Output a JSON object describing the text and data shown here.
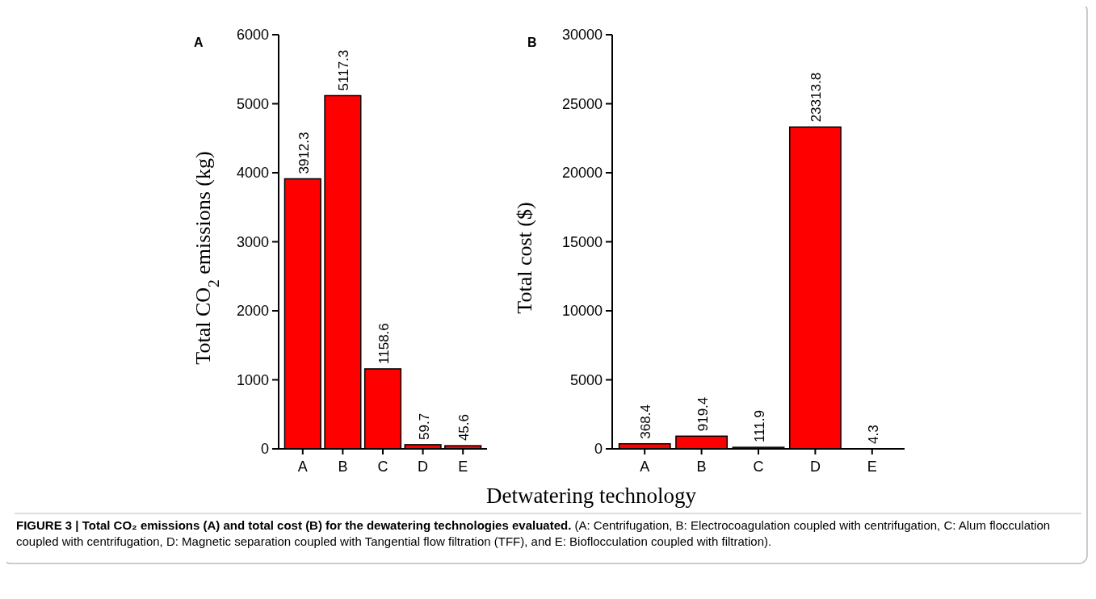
{
  "chart_data": [
    {
      "type": "bar",
      "title": "A",
      "categories": [
        "A",
        "B",
        "C",
        "D",
        "E"
      ],
      "values": [
        3912.3,
        5117.3,
        1158.6,
        59.7,
        45.6
      ],
      "color": "#ff0000",
      "ylim": [
        0,
        6000
      ],
      "yticks": [
        0,
        1000,
        2000,
        3000,
        4000,
        5000,
        6000
      ],
      "ylabel": "Total CO$_{2}$ emissions (kg)",
      "xlabel": "Detwatering technology",
      "data_labels": true,
      "annotations": [
        "FIGURE 3 | Total CO₂ emissions (A) and total cost (B) for the dewatering technologies evaluated.",
        "(A: Centrifugation, B: Electrocoagulation coupled with centrifugation, C: Alum flocculation coupled with centrifugation, D: Magnetic separation coupled with Tangential flow filtration (TFF), and E: Bioflocculation coupled with filtration)."
      ]
    },
    {
      "type": "bar",
      "title": "B",
      "categories": [
        "A",
        "B",
        "C",
        "D",
        "E"
      ],
      "values": [
        368.4,
        919.4,
        111.9,
        23313.8,
        4.3
      ],
      "color": "#ff0000",
      "ylim": [
        0,
        30000
      ],
      "yticks": [
        0,
        5000,
        10000,
        15000,
        20000,
        25000,
        30000
      ],
      "ylabel": "Total cost ($)",
      "data_labels": true
    }
  ]
}
